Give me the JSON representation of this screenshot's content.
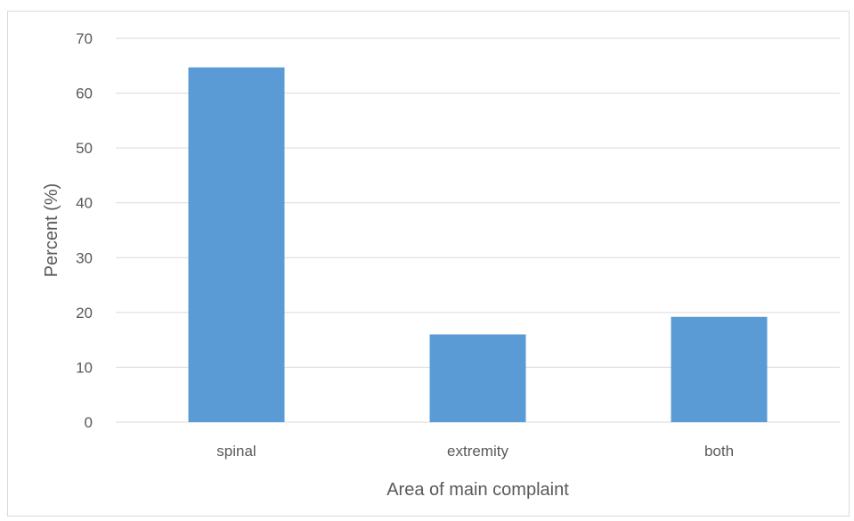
{
  "chart_data": {
    "type": "bar",
    "categories": [
      "spinal",
      "extremity",
      "both"
    ],
    "values": [
      64.7,
      16.0,
      19.2
    ],
    "title": "",
    "xlabel": "Area of main complaint",
    "ylabel": "Percent (%)",
    "ylim": [
      0,
      70
    ],
    "yticks": [
      0,
      10,
      20,
      30,
      40,
      50,
      60,
      70
    ],
    "grid": true,
    "legend": "none",
    "bar_color": "#5b9bd5",
    "grid_color": "#d9d9d9",
    "text_color": "#595959"
  }
}
